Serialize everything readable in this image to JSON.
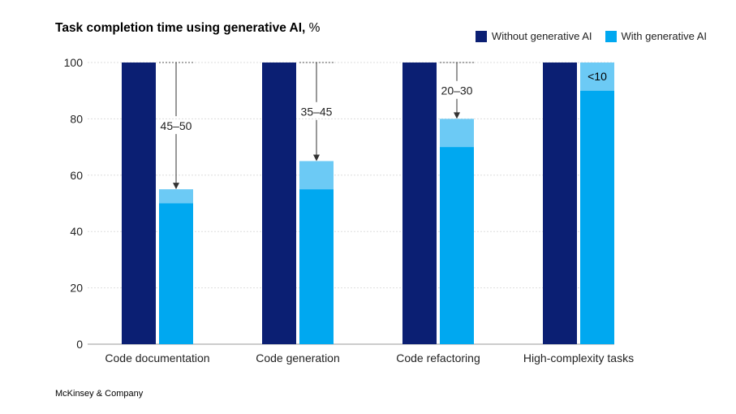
{
  "title_bold": "Task completion time using generative AI,",
  "title_unit": " %",
  "source": "McKinsey & Company",
  "colors": {
    "without": "#0b1f73",
    "with": "#00a8f0",
    "with_range": "#6ccaf5",
    "axis": "#999999",
    "grid": "#dddddd",
    "text": "#222222"
  },
  "chart_data": {
    "type": "bar",
    "title": "Task completion time using generative AI, %",
    "ylim": [
      0,
      100
    ],
    "yticks": [
      0,
      20,
      40,
      60,
      80,
      100
    ],
    "grid": "horizontal",
    "legend_position": "top-right",
    "categories": [
      "Code documentation",
      "Code generation",
      "Code refactoring",
      "High-complexity tasks"
    ],
    "series": [
      {
        "name": "Without generative AI",
        "values": [
          100,
          100,
          100,
          100
        ]
      },
      {
        "name": "With generative AI",
        "values": [
          50,
          55,
          70,
          90
        ],
        "range_top": [
          55,
          65,
          80,
          100
        ]
      }
    ],
    "annotations": [
      "45–50",
      "35–45",
      "20–30",
      "<10"
    ]
  }
}
